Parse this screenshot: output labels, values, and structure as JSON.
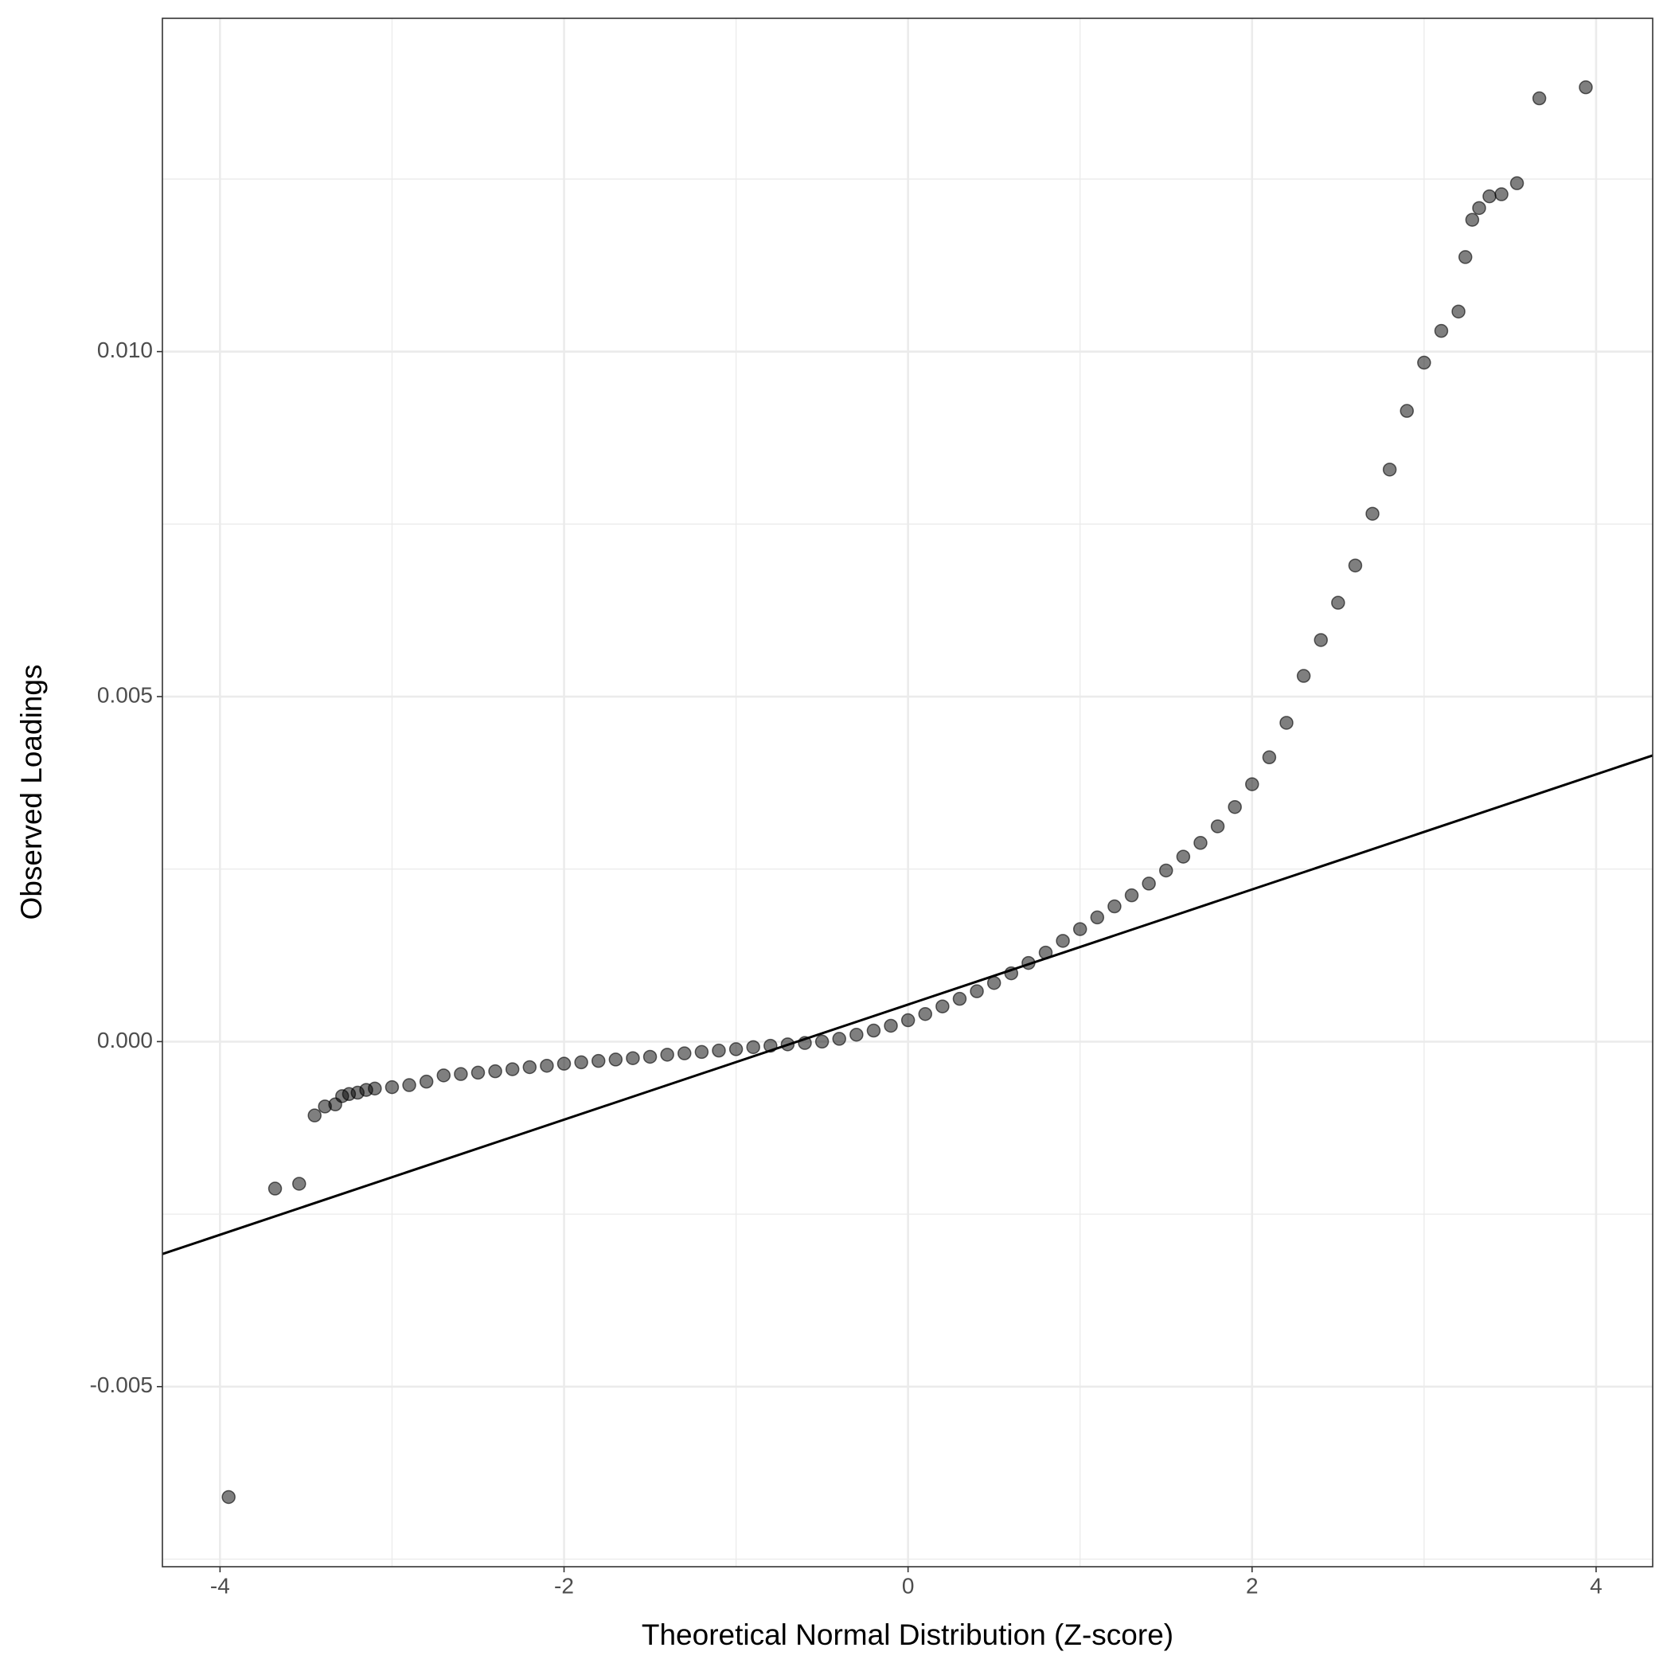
{
  "chart_data": {
    "type": "scatter",
    "x_label": "Theoretical Normal Distribution (Z-score)",
    "y_label": "Observed Loadings",
    "x": [
      -3.95,
      -3.68,
      -3.54,
      -3.45,
      -3.39,
      -3.33,
      -3.29,
      -3.25,
      -3.2,
      -3.15,
      -3.1,
      -3.0,
      -2.9,
      -2.8,
      -2.7,
      -2.6,
      -2.5,
      -2.4,
      -2.3,
      -2.2,
      -2.1,
      -2.0,
      -1.9,
      -1.8,
      -1.7,
      -1.6,
      -1.5,
      -1.4,
      -1.3,
      -1.2,
      -1.1,
      -1.0,
      -0.9,
      -0.8,
      -0.7,
      -0.6,
      -0.5,
      -0.4,
      -0.3,
      -0.2,
      -0.1,
      0.0,
      0.1,
      0.2,
      0.3,
      0.4,
      0.5,
      0.6,
      0.7,
      0.8,
      0.9,
      1.0,
      1.1,
      1.2,
      1.3,
      1.4,
      1.5,
      1.6,
      1.7,
      1.8,
      1.9,
      2.0,
      2.1,
      2.2,
      2.3,
      2.4,
      2.5,
      2.6,
      2.7,
      2.8,
      2.9,
      3.0,
      3.1,
      3.2,
      3.24,
      3.28,
      3.32,
      3.38,
      3.45,
      3.54,
      3.67,
      3.94
    ],
    "values": [
      -0.0066,
      -0.00213,
      -0.00206,
      -0.00107,
      -0.00094,
      -0.00091,
      -0.00079,
      -0.00076,
      -0.00074,
      -0.0007,
      -0.00068,
      -0.00066,
      -0.00063,
      -0.00058,
      -0.00049,
      -0.00047,
      -0.00045,
      -0.00043,
      -0.0004,
      -0.00037,
      -0.00035,
      -0.00032,
      -0.0003,
      -0.00028,
      -0.00026,
      -0.00024,
      -0.00022,
      -0.00019,
      -0.00017,
      -0.00015,
      -0.00013,
      -0.00011,
      -8e-05,
      -6e-05,
      -4e-05,
      -2e-05,
      0.0,
      4e-05,
      0.0001,
      0.00016,
      0.00023,
      0.00031,
      0.0004,
      0.00051,
      0.00062,
      0.00073,
      0.00085,
      0.00099,
      0.00114,
      0.00129,
      0.00146,
      0.00163,
      0.0018,
      0.00196,
      0.00212,
      0.00229,
      0.00248,
      0.00268,
      0.00288,
      0.00312,
      0.0034,
      0.00373,
      0.00412,
      0.00462,
      0.0053,
      0.00582,
      0.00636,
      0.0069,
      0.00765,
      0.00829,
      0.00914,
      0.00984,
      0.0103,
      0.01058,
      0.01137,
      0.01191,
      0.01208,
      0.01225,
      0.01228,
      0.01244,
      0.01367,
      0.01383
    ],
    "point_color": "#000000",
    "reference_line": {
      "intercept": 0.000537,
      "slope": 0.000834,
      "color": "#000000"
    },
    "xlim": [
      -4.335,
      4.329
    ],
    "ylim": [
      -0.00761,
      0.01483
    ],
    "xticks": [
      -4,
      -2,
      0,
      2,
      4
    ],
    "yticks": [
      -0.005,
      {
        "value": 0,
        "label": "0.000"
      },
      0.005,
      {
        "value": 0.01,
        "label": "0.010"
      }
    ],
    "grid": true,
    "minor_grid": true
  }
}
